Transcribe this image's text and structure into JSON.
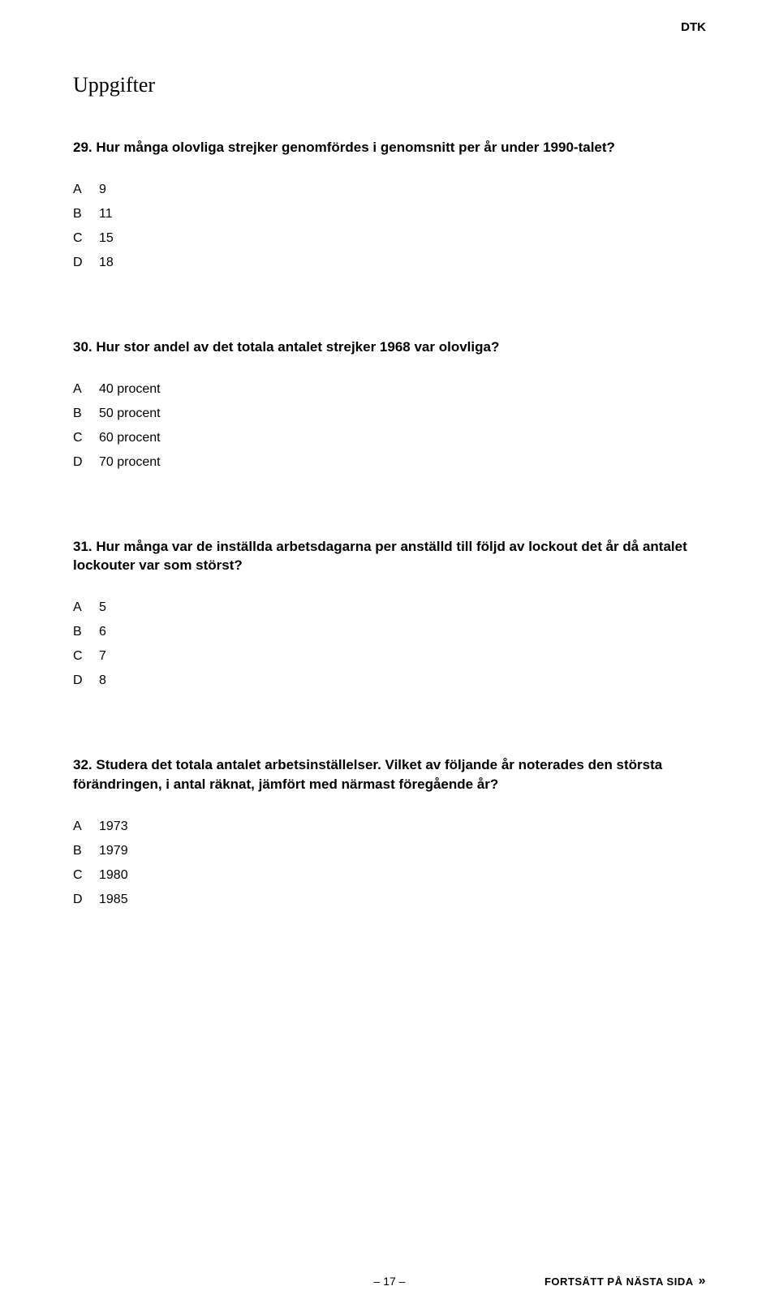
{
  "header": {
    "section_label": "DTK"
  },
  "title": "Uppgifter",
  "questions": [
    {
      "number": "29.",
      "text": "Hur många olovliga strejker genomfördes i genomsnitt per år under 1990-talet?",
      "options": [
        {
          "letter": "A",
          "value": "9"
        },
        {
          "letter": "B",
          "value": "11"
        },
        {
          "letter": "C",
          "value": "15"
        },
        {
          "letter": "D",
          "value": "18"
        }
      ]
    },
    {
      "number": "30.",
      "text": "Hur stor andel av det totala antalet strejker 1968 var olovliga?",
      "options": [
        {
          "letter": "A",
          "value": "40 procent"
        },
        {
          "letter": "B",
          "value": "50 procent"
        },
        {
          "letter": "C",
          "value": "60 procent"
        },
        {
          "letter": "D",
          "value": "70 procent"
        }
      ]
    },
    {
      "number": "31.",
      "text": "Hur många var de inställda arbetsdagarna per anställd till följd av lockout det år då antalet lockouter var som störst?",
      "options": [
        {
          "letter": "A",
          "value": "5"
        },
        {
          "letter": "B",
          "value": "6"
        },
        {
          "letter": "C",
          "value": "7"
        },
        {
          "letter": "D",
          "value": "8"
        }
      ]
    },
    {
      "number": "32.",
      "text": "Studera det totala antalet arbetsinställelser. Vilket av följande år noterades den största förändringen, i antal räknat, jämfört med närmast föregående år?",
      "options": [
        {
          "letter": "A",
          "value": "1973"
        },
        {
          "letter": "B",
          "value": "1979"
        },
        {
          "letter": "C",
          "value": "1980"
        },
        {
          "letter": "D",
          "value": "1985"
        }
      ]
    }
  ],
  "footer": {
    "page_number": "– 17 –",
    "next_page_text": "FORTSÄTT PÅ NÄSTA SIDA",
    "arrow": "»"
  },
  "styles": {
    "background_color": "#ffffff",
    "text_color": "#000000",
    "title_fontsize": 26,
    "question_fontsize": 17,
    "option_fontsize": 16,
    "footer_fontsize": 14,
    "question_font_weight": "bold",
    "body_font": "Georgia, serif",
    "label_font": "Arial, Helvetica, sans-serif"
  }
}
